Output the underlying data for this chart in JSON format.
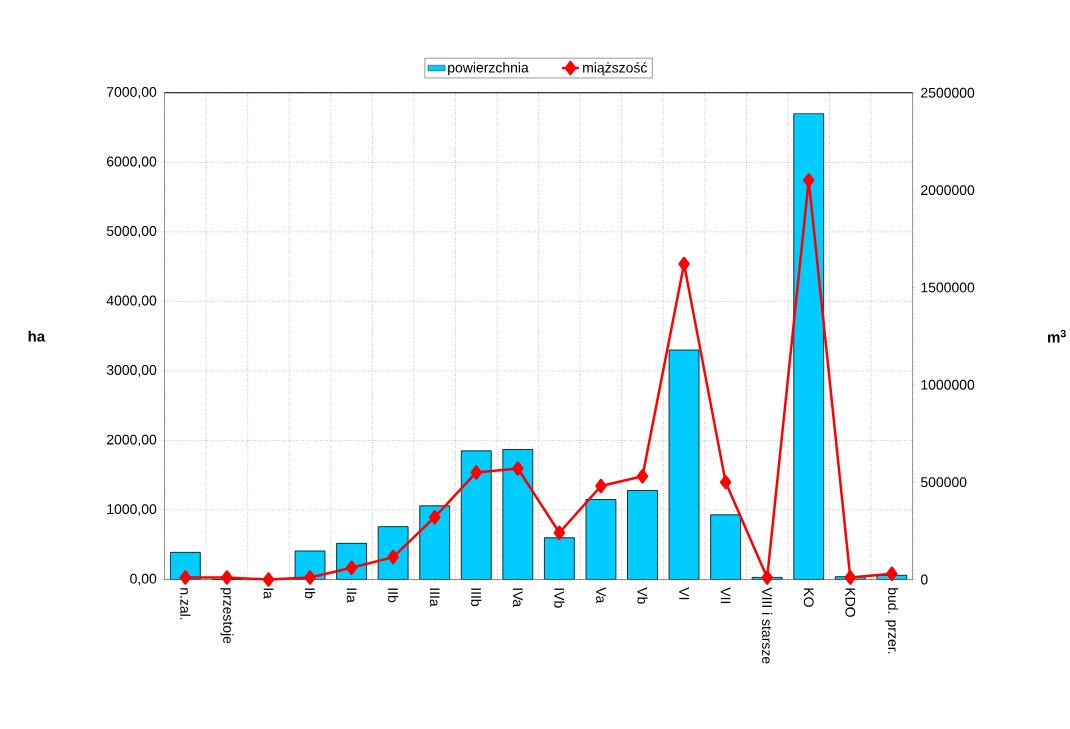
{
  "chart_data": {
    "type": "bar",
    "categories": [
      "n.zal.",
      "przestoje",
      "Ia",
      "Ib",
      "IIa",
      "IIb",
      "IIIa",
      "IIIb",
      "IVa",
      "IVb",
      "Va",
      "Vb",
      "VI",
      "VII",
      "VIII i starsze",
      "KO",
      "KDO",
      "bud. przer."
    ],
    "series": [
      {
        "name": "powierzchnia",
        "color": "#00ccff",
        "values": [
          390,
          0,
          0,
          410,
          520,
          760,
          1060,
          1850,
          1870,
          600,
          1150,
          1280,
          3300,
          930,
          30,
          6700,
          40,
          60
        ]
      },
      {
        "name": "miąższość",
        "type": "line",
        "axis": "y2",
        "color": "#ff0000",
        "marker": "diamond",
        "values": [
          10000,
          10000,
          0,
          10000,
          60000,
          115000,
          320000,
          550000,
          570000,
          240000,
          480000,
          530000,
          1620000,
          500000,
          10000,
          2050000,
          10000,
          30000
        ]
      }
    ],
    "ylabel": "ha",
    "y2label": "m$^{3}$",
    "ylim": [
      0,
      7000
    ],
    "yticks": [
      {
        "value": 0,
        "label": "0,00"
      },
      {
        "value": 1000,
        "label": "1000,00"
      },
      {
        "value": 2000,
        "label": "2000,00"
      },
      {
        "value": 3000,
        "label": "3000,00"
      },
      {
        "value": 4000,
        "label": "4000,00"
      },
      {
        "value": 5000,
        "label": "5000,00"
      },
      {
        "value": 6000,
        "label": "6000,00"
      },
      {
        "value": 7000,
        "label": "7000,00"
      }
    ],
    "y2lim": [
      0,
      2500000
    ],
    "y2ticks": [
      0,
      500000,
      1000000,
      1500000,
      2000000,
      2500000
    ],
    "grid": true,
    "legend": "top"
  }
}
